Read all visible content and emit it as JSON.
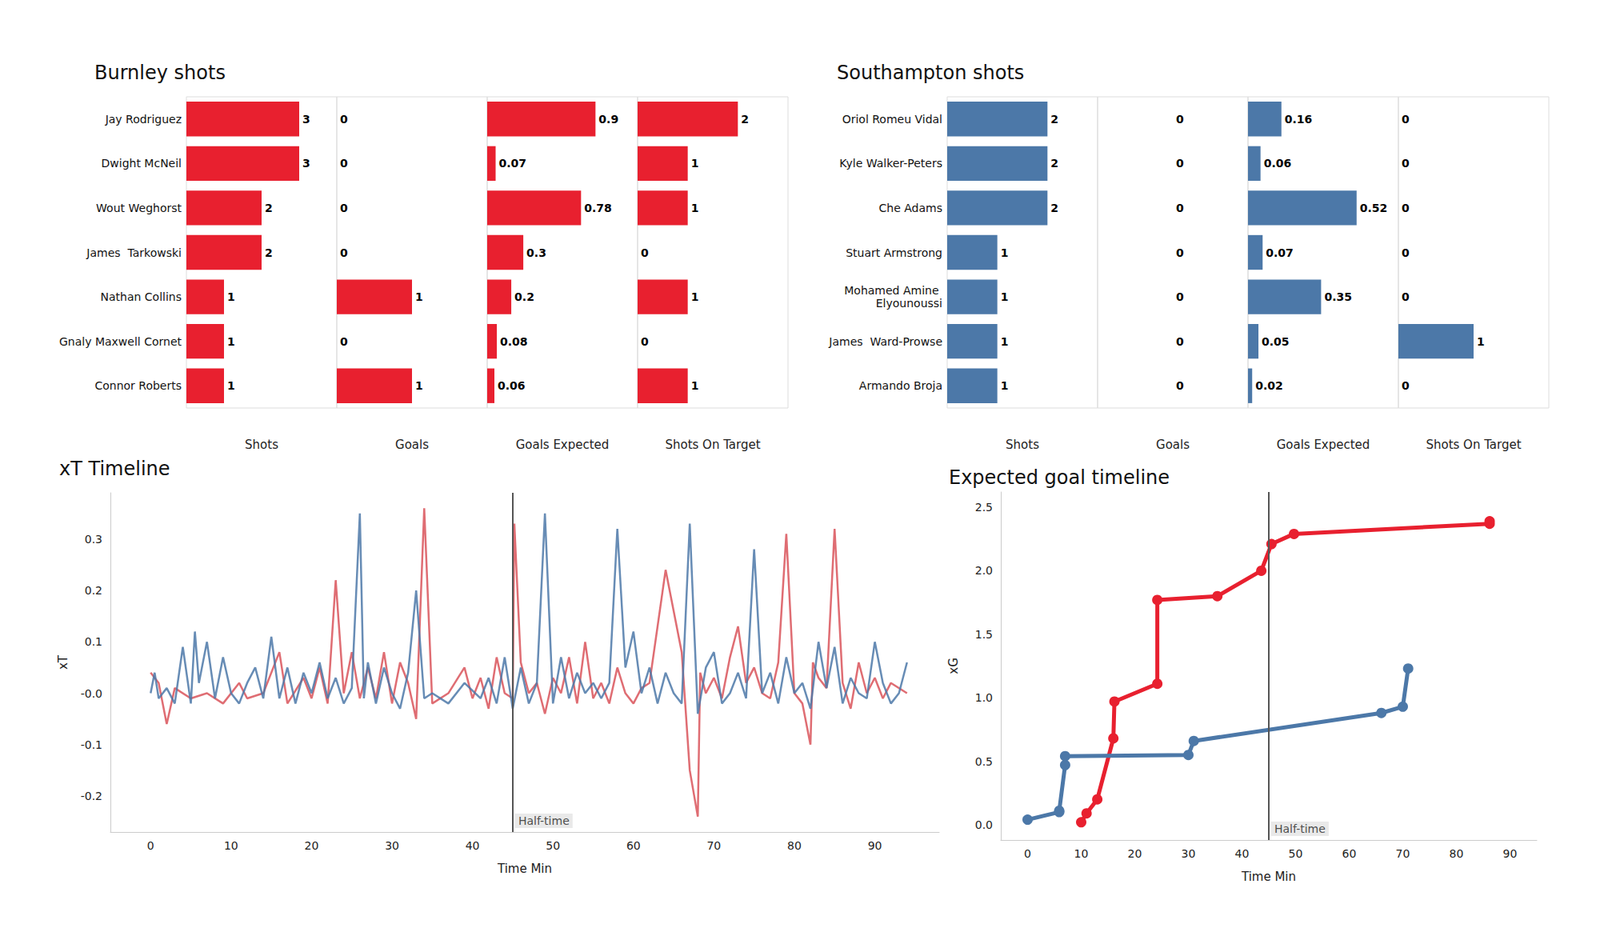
{
  "chart_data": [
    {
      "type": "bar",
      "title": "Burnley shots",
      "orientation": "horizontal",
      "categories": [
        "Jay Rodriguez",
        "Dwight McNeil",
        "Wout Weghorst",
        "James  Tarkowski",
        "Nathan Collins",
        "Gnaly Maxwell Cornet",
        "Connor Roberts"
      ],
      "values": [
        3,
        3,
        2,
        2,
        1,
        1,
        1
      ],
      "color": "#e8202f",
      "xlabel": "Shots",
      "xlim": [
        0,
        4
      ],
      "data_labels": true,
      "tick_labels": "y",
      "grid": false
    },
    {
      "type": "bar",
      "orientation": "horizontal",
      "categories": [
        "Jay Rodriguez",
        "Dwight McNeil",
        "Wout Weghorst",
        "James  Tarkowski",
        "Nathan Collins",
        "Gnaly Maxwell Cornet",
        "Connor Roberts"
      ],
      "values": [
        0,
        0,
        0,
        0,
        1,
        0,
        1
      ],
      "color": "#e8202f",
      "xlabel": "Goals",
      "xlim": [
        0,
        2
      ],
      "data_labels": true,
      "tick_labels": false,
      "grid": false
    },
    {
      "type": "bar",
      "orientation": "horizontal",
      "categories": [
        "Jay Rodriguez",
        "Dwight McNeil",
        "Wout Weghorst",
        "James  Tarkowski",
        "Nathan Collins",
        "Gnaly Maxwell Cornet",
        "Connor Roberts"
      ],
      "values": [
        0.9,
        0.07,
        0.78,
        0.3,
        0.2,
        0.08,
        0.06
      ],
      "color": "#e8202f",
      "xlabel": "Goals Expected",
      "xlim": [
        0,
        1.25
      ],
      "data_labels": true,
      "tick_labels": false,
      "grid": false
    },
    {
      "type": "bar",
      "orientation": "horizontal",
      "categories": [
        "Jay Rodriguez",
        "Dwight McNeil",
        "Wout Weghorst",
        "James  Tarkowski",
        "Nathan Collins",
        "Gnaly Maxwell Cornet",
        "Connor Roberts"
      ],
      "values": [
        2,
        1,
        1,
        0,
        1,
        0,
        1
      ],
      "color": "#e8202f",
      "xlabel": "Shots On Target",
      "xlim": [
        0,
        3
      ],
      "data_labels": true,
      "tick_labels": false,
      "grid": false
    },
    {
      "type": "bar",
      "title": "Southampton shots",
      "orientation": "horizontal",
      "categories": [
        "Oriol Romeu Vidal",
        "Kyle Walker-Peters",
        "Che Adams",
        "Stuart Armstrong",
        "Mohamed Amine Elyounoussi",
        "James  Ward-Prowse",
        "Armando Broja"
      ],
      "values": [
        2,
        2,
        2,
        1,
        1,
        1,
        1
      ],
      "color": "#4c78a8",
      "xlabel": "Shots",
      "xlim": [
        0,
        3
      ],
      "data_labels": true,
      "tick_labels": "y",
      "grid": false
    },
    {
      "type": "bar",
      "orientation": "horizontal",
      "categories": [
        "Oriol Romeu Vidal",
        "Kyle Walker-Peters",
        "Che Adams",
        "Stuart Armstrong",
        "Mohamed Amine Elyounoussi",
        "James  Ward-Prowse",
        "Armando Broja"
      ],
      "values": [
        0,
        0,
        0,
        0,
        0,
        0,
        0
      ],
      "color": "#4c78a8",
      "xlabel": "Goals",
      "xlim": [
        -0.05,
        0.05
      ],
      "data_labels": true,
      "tick_labels": false,
      "grid": false
    },
    {
      "type": "bar",
      "orientation": "horizontal",
      "categories": [
        "Oriol Romeu Vidal",
        "Kyle Walker-Peters",
        "Che Adams",
        "Stuart Armstrong",
        "Mohamed Amine Elyounoussi",
        "James  Ward-Prowse",
        "Armando Broja"
      ],
      "values": [
        0.16,
        0.06,
        0.52,
        0.07,
        0.35,
        0.05,
        0.02
      ],
      "color": "#4c78a8",
      "xlabel": "Goals Expected",
      "xlim": [
        0,
        0.72
      ],
      "data_labels": true,
      "tick_labels": false,
      "grid": false
    },
    {
      "type": "bar",
      "orientation": "horizontal",
      "categories": [
        "Oriol Romeu Vidal",
        "Kyle Walker-Peters",
        "Che Adams",
        "Stuart Armstrong",
        "Mohamed Amine Elyounoussi",
        "James  Ward-Prowse",
        "Armando Broja"
      ],
      "values": [
        0,
        0,
        0,
        0,
        0,
        1,
        0
      ],
      "color": "#4c78a8",
      "xlabel": "Shots On Target",
      "xlim": [
        0,
        2
      ],
      "data_labels": true,
      "tick_labels": false,
      "grid": false
    },
    {
      "type": "line",
      "title": "xT Timeline",
      "xlabel": "Time Min",
      "ylabel": "xT",
      "marker": "none",
      "grid": false,
      "xlim": [
        -5,
        98
      ],
      "xticks": [
        0,
        10,
        20,
        30,
        40,
        50,
        60,
        70,
        80,
        90
      ],
      "ylim": [
        -0.27,
        0.39
      ],
      "yticks": [
        -0.2,
        -0.1,
        {
          "value": 0,
          "label": "-0.0"
        },
        0.1,
        0.2,
        0.3
      ],
      "annotations": [
        {
          "x": 45,
          "text": "Half-time"
        }
      ],
      "series": [
        {
          "color": "#d9535b",
          "x": [
            0,
            1,
            2,
            3,
            5,
            7,
            9,
            11,
            12,
            14,
            16,
            17,
            19,
            20,
            21,
            22,
            23,
            24,
            25,
            26,
            27,
            28,
            29,
            30,
            31,
            32,
            33,
            34,
            35,
            37,
            39,
            40,
            41,
            42,
            43,
            44,
            45,
            45.2,
            46,
            47,
            48,
            49,
            50,
            51,
            52,
            53,
            54,
            55,
            56,
            57,
            58,
            59,
            60,
            61,
            62,
            64,
            66,
            67,
            68,
            68.3,
            69,
            70,
            71,
            72,
            73,
            74,
            75,
            76,
            77,
            78,
            79,
            80,
            81,
            82,
            82.3,
            83,
            84,
            85,
            86,
            87,
            88,
            89,
            90,
            91,
            92,
            94
          ],
          "values": [
            0.04,
            0.02,
            -0.06,
            0.01,
            -0.01,
            0,
            -0.02,
            0.02,
            -0.01,
            0,
            0.08,
            -0.02,
            0.03,
            -0.01,
            0.05,
            -0.02,
            0.22,
            0,
            0.08,
            -0.01,
            0.05,
            -0.01,
            0.08,
            -0.02,
            0.06,
            0.02,
            -0.05,
            0.36,
            -0.02,
            0,
            0.05,
            -0.01,
            0.03,
            -0.03,
            0.07,
            0,
            -0.01,
            0.33,
            0.06,
            0,
            0.02,
            -0.04,
            0.03,
            0,
            0.07,
            -0.02,
            0.1,
            -0.01,
            0.02,
            -0.02,
            0.05,
            0,
            -0.02,
            0.01,
            0.02,
            0.24,
            0.08,
            -0.15,
            -0.24,
            0.04,
            0,
            0.03,
            -0.01,
            0.07,
            0.13,
            0.02,
            0.05,
            0,
            -0.01,
            0.06,
            0.31,
            0,
            -0.02,
            -0.1,
            0.06,
            0.03,
            0.01,
            0.32,
            0.02,
            -0.03,
            0.06,
            0,
            0.03,
            -0.01,
            0.02,
            0
          ]
        },
        {
          "color": "#4c78a8",
          "x": [
            0,
            0.5,
            1,
            2,
            3,
            4,
            5,
            5.5,
            6,
            7,
            8,
            9,
            10,
            11,
            12,
            13,
            14,
            15,
            16,
            17,
            18,
            19,
            20,
            21,
            22,
            23,
            24,
            25,
            26,
            26.5,
            27,
            28,
            29,
            30,
            31,
            32,
            33,
            34,
            35,
            37,
            39,
            41,
            42,
            43,
            44,
            45,
            46,
            47,
            48,
            49,
            50,
            51,
            52,
            53,
            54,
            55,
            56,
            57,
            58,
            59,
            60,
            61,
            62,
            63,
            64,
            65,
            66,
            67,
            68,
            69,
            70,
            71,
            72,
            73,
            74,
            75,
            76,
            77,
            78,
            79,
            80,
            81,
            82,
            83,
            84,
            85,
            86,
            87,
            88,
            89,
            90,
            91,
            92,
            93,
            94
          ],
          "values": [
            0,
            0.04,
            -0.01,
            0.01,
            -0.02,
            0.09,
            -0.02,
            0.12,
            0.02,
            0.1,
            -0.01,
            0.07,
            0,
            -0.02,
            0.02,
            0.05,
            -0.01,
            0.11,
            -0.01,
            0.05,
            -0.02,
            0.04,
            0,
            0.06,
            -0.01,
            0.03,
            -0.02,
            0.01,
            0.35,
            -0.01,
            0.06,
            -0.02,
            0.05,
            0,
            -0.03,
            0.04,
            0.2,
            -0.01,
            0,
            -0.02,
            0.02,
            -0.01,
            0.03,
            -0.02,
            0.07,
            -0.03,
            0.05,
            -0.02,
            0.02,
            0.35,
            -0.02,
            0.07,
            -0.01,
            0.04,
            0,
            0.02,
            -0.01,
            0.02,
            0.32,
            0.05,
            0.12,
            0,
            0.05,
            -0.02,
            0.04,
            0,
            -0.02,
            0.33,
            -0.04,
            0.05,
            0.08,
            -0.02,
            0,
            0.04,
            -0.01,
            0.28,
            0,
            0.04,
            -0.02,
            0.07,
            0,
            0.02,
            -0.03,
            0.1,
            0.01,
            0.09,
            -0.02,
            0.03,
            0,
            -0.01,
            0.1,
            0.02,
            -0.02,
            0,
            0.06
          ]
        }
      ]
    },
    {
      "type": "line",
      "title": "Expected goal timeline",
      "xlabel": "Time Min",
      "ylabel": "xG",
      "marker": "circle",
      "grid": false,
      "xlim": [
        -5,
        95
      ],
      "xticks": [
        0,
        10,
        20,
        30,
        40,
        50,
        60,
        70,
        80,
        90
      ],
      "ylim": [
        -0.12,
        2.62
      ],
      "yticks": [
        {
          "value": 0,
          "label": "0.0"
        },
        0.5,
        {
          "value": 1,
          "label": "1.0"
        },
        1.5,
        {
          "value": 2,
          "label": "2.0"
        },
        2.5
      ],
      "annotations": [
        {
          "x": 45,
          "text": "Half-time"
        }
      ],
      "series": [
        {
          "color": "#e8202f",
          "x": [
            10,
            11,
            13,
            16,
            16.2,
            24.2,
            24.2,
            35.4,
            43.6,
            45.5,
            49.7,
            86.2,
            86.2
          ],
          "values": [
            0.02,
            0.09,
            0.2,
            0.68,
            0.97,
            1.11,
            1.77,
            1.8,
            2.0,
            2.21,
            2.29,
            2.37,
            2.39
          ]
        },
        {
          "color": "#4c78a8",
          "x": [
            0,
            5.9,
            5.9,
            7,
            7,
            30,
            31,
            66,
            70,
            71
          ],
          "values": [
            0.04,
            0.1,
            0.11,
            0.47,
            0.54,
            0.55,
            0.66,
            0.88,
            0.93,
            1.23
          ]
        }
      ]
    }
  ]
}
